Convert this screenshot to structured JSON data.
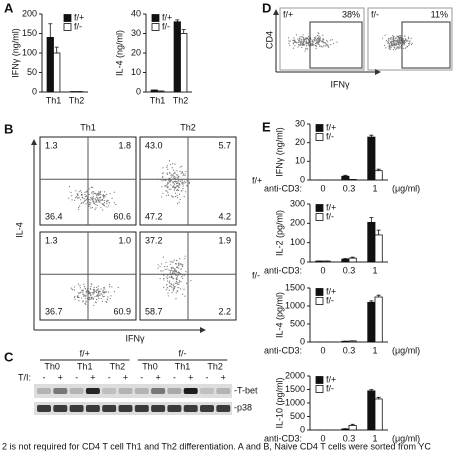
{
  "chart_data": [
    {
      "type": "bar",
      "y_label": "IFNγ (ng/ml)",
      "categories": [
        "Th1",
        "Th2"
      ],
      "series": [
        {
          "name": "f/+",
          "color": "#111111",
          "values": [
            140,
            1
          ],
          "errors": [
            35,
            0
          ]
        },
        {
          "name": "f/-",
          "color": "#ffffff",
          "values": [
            100,
            1
          ],
          "errors": [
            15,
            0
          ]
        }
      ],
      "ylim": [
        0,
        200
      ],
      "yticks": [
        0,
        50,
        100,
        150,
        200
      ],
      "legend": "upper right"
    },
    {
      "type": "bar",
      "y_label": "IL-4 (ng/ml)",
      "categories": [
        "Th1",
        "Th2"
      ],
      "series": [
        {
          "name": "f/+",
          "color": "#111111",
          "values": [
            1,
            36
          ],
          "errors": [
            0,
            1
          ]
        },
        {
          "name": "f/-",
          "color": "#ffffff",
          "values": [
            0.5,
            30
          ],
          "errors": [
            0,
            2
          ]
        }
      ],
      "ylim": [
        0,
        40
      ],
      "yticks": [
        0,
        10,
        20,
        30,
        40
      ],
      "legend": "upper left"
    },
    {
      "type": "bar",
      "y_label": "IFNγ (ng/ml)",
      "x_label": "anti-CD3:",
      "x_unit": "(μg/ml)",
      "categories": [
        "0",
        "0.3",
        "1"
      ],
      "series": [
        {
          "name": "f/+",
          "color": "#111111",
          "values": [
            0,
            2,
            23
          ],
          "errors": [
            0,
            0.5,
            1
          ]
        },
        {
          "name": "f/-",
          "color": "#ffffff",
          "values": [
            0,
            0.3,
            5
          ],
          "errors": [
            0,
            0,
            0.8
          ]
        }
      ],
      "ylim": [
        0,
        30
      ],
      "yticks": [
        0,
        10,
        20,
        30
      ],
      "legend": "upper left"
    },
    {
      "type": "bar",
      "y_label": "IL-2 (pg/ml)",
      "x_label": "anti-CD3:",
      "categories": [
        "0",
        "0.3",
        "1"
      ],
      "series": [
        {
          "name": "f/+",
          "color": "#111111",
          "values": [
            5,
            15,
            205
          ],
          "errors": [
            0,
            3,
            25
          ]
        },
        {
          "name": "f/-",
          "color": "#ffffff",
          "values": [
            5,
            20,
            140
          ],
          "errors": [
            0,
            5,
            25
          ]
        }
      ],
      "ylim": [
        0,
        300
      ],
      "yticks": [
        0,
        100,
        200,
        300
      ],
      "legend": "upper left"
    },
    {
      "type": "bar",
      "y_label": "IL-4 (pg/ml)",
      "x_label": "anti-CD3:",
      "x_unit": "(μg/ml)",
      "categories": [
        "0",
        "0.3",
        "1"
      ],
      "series": [
        {
          "name": "f/+",
          "color": "#111111",
          "values": [
            0,
            20,
            1100
          ],
          "errors": [
            0,
            5,
            40
          ]
        },
        {
          "name": "f/-",
          "color": "#ffffff",
          "values": [
            0,
            30,
            1250
          ],
          "errors": [
            0,
            5,
            50
          ]
        }
      ],
      "ylim": [
        0,
        1500
      ],
      "yticks": [
        0,
        500,
        1000,
        1500
      ],
      "legend": "upper left"
    },
    {
      "type": "bar",
      "y_label": "IL-10 (pg/ml)",
      "x_label": "anti-CD3:",
      "x_unit": "(μg/ml)",
      "categories": [
        "0",
        "0.3",
        "1"
      ],
      "series": [
        {
          "name": "f/+",
          "color": "#111111",
          "values": [
            0,
            40,
            1450
          ],
          "errors": [
            0,
            10,
            50
          ]
        },
        {
          "name": "f/-",
          "color": "#ffffff",
          "values": [
            0,
            170,
            1150
          ],
          "errors": [
            0,
            40,
            60
          ]
        }
      ],
      "ylim": [
        0,
        2000
      ],
      "yticks": [
        0,
        500,
        1000,
        1500,
        2000
      ],
      "legend": "upper left"
    }
  ],
  "panel_labels": [
    "A",
    "B",
    "C",
    "D",
    "E"
  ],
  "flow_B": {
    "columns": [
      "Th1",
      "Th2"
    ],
    "rows": [
      "f/+",
      "f/-"
    ],
    "y_label": "IL-4",
    "x_label": "IFNγ",
    "quadrants": [
      [
        [
          "1.3",
          "1.8",
          "36.4",
          "60.6"
        ],
        [
          "43.0",
          "5.7",
          "47.2",
          "4.2"
        ]
      ],
      [
        [
          "1.3",
          "1.0",
          "36.7",
          "60.9"
        ],
        [
          "37.2",
          "1.9",
          "58.7",
          "2.2"
        ]
      ]
    ]
  },
  "blot_C": {
    "groups": [
      "f/+",
      "f/-"
    ],
    "conditions": [
      "Th0",
      "Th1",
      "Th2",
      "Th0",
      "Th1",
      "Th2"
    ],
    "row_label": "T/I:",
    "treatments": [
      "-",
      "+",
      "-",
      "+",
      "-",
      "+",
      "-",
      "+",
      "-",
      "+",
      "-",
      "+"
    ],
    "bands": [
      "-T-bet",
      "-p38"
    ]
  },
  "flow_D": {
    "y_label": "CD4",
    "x_label": "IFNγ",
    "plots": [
      {
        "genotype": "f/+",
        "percent": "38%"
      },
      {
        "genotype": "f/-",
        "percent": "11%"
      }
    ]
  },
  "caption": "2 is not required for CD4 T cell Th1 and Th2 differentiation. A and B, Naive CD4 T cells were sorted from YC"
}
